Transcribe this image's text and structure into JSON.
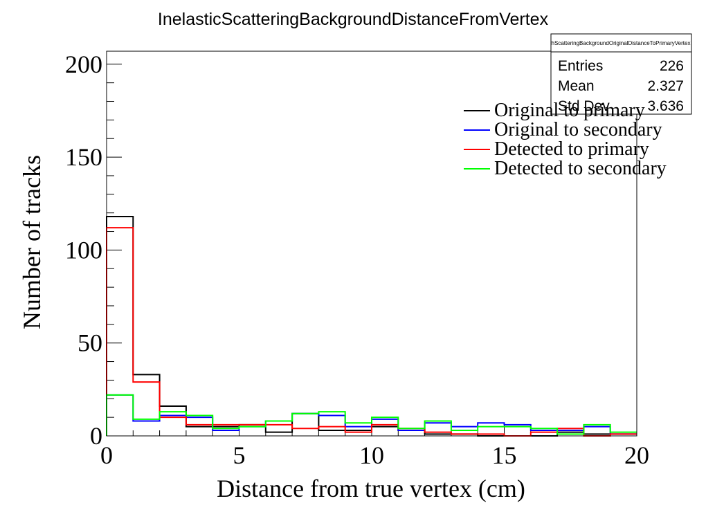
{
  "chart_data": {
    "type": "histogram",
    "title": "InelasticScatteringBackgroundDistanceFromVertex",
    "xlabel": "Distance from true vertex (cm)",
    "ylabel": "Number of tracks",
    "xlim": [
      0,
      20
    ],
    "ylim": [
      0,
      207
    ],
    "x_ticks": [
      "0",
      "5",
      "10",
      "15",
      "20"
    ],
    "y_ticks": [
      "0",
      "50",
      "100",
      "150",
      "200"
    ],
    "bin_edges": [
      0,
      1,
      2,
      3,
      4,
      5,
      6,
      7,
      8,
      9,
      10,
      11,
      12,
      13,
      14,
      15,
      16,
      17,
      18,
      19,
      20
    ],
    "series": [
      {
        "name": "Original to primary",
        "color": "#000000",
        "values": [
          118,
          33,
          16,
          5,
          5,
          6,
          2,
          12,
          3,
          3,
          5,
          3,
          1,
          1,
          0,
          0,
          0,
          2,
          1,
          1
        ]
      },
      {
        "name": "Original to secondary",
        "color": "#0000ff",
        "values": [
          22,
          8,
          11,
          10,
          3,
          5,
          8,
          12,
          11,
          5,
          9,
          3,
          7,
          5,
          7,
          6,
          3,
          3,
          5,
          1
        ]
      },
      {
        "name": "Detected to primary",
        "color": "#ff0000",
        "values": [
          112,
          29,
          10,
          6,
          6,
          6,
          6,
          4,
          5,
          2,
          6,
          4,
          2,
          1,
          1,
          0,
          2,
          4,
          0,
          1
        ]
      },
      {
        "name": "Detected to secondary",
        "color": "#00ff00",
        "values": [
          22,
          9,
          13,
          11,
          4,
          5,
          8,
          12,
          13,
          7,
          10,
          4,
          8,
          3,
          5,
          5,
          4,
          1,
          6,
          2
        ]
      }
    ],
    "legend_position": "top-right",
    "stats_box": {
      "name": "hScatteringBackgroundOriginalDistanceToPrimaryVertex",
      "rows": [
        {
          "label": "Entries",
          "value": "226"
        },
        {
          "label": "Mean",
          "value": "2.327"
        },
        {
          "label": "Std Dev",
          "value": "3.636"
        }
      ]
    }
  }
}
